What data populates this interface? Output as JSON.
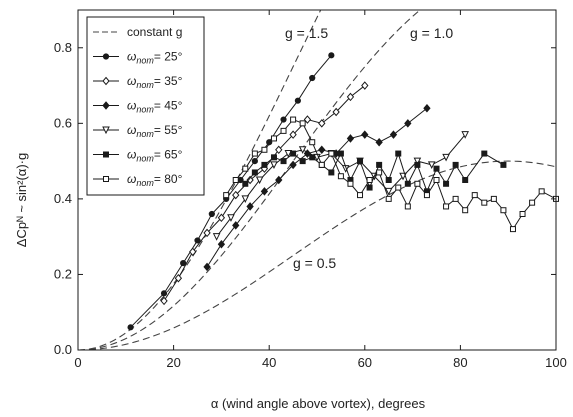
{
  "chart_data": {
    "type": "line",
    "xlabel": "α (wind angle above vortex), degrees",
    "ylabel": "ΔCpᴺ ~ sin²(α)·g",
    "xlim": [
      0,
      100
    ],
    "ylim": [
      0,
      0.9
    ],
    "xticks": [
      0,
      20,
      40,
      60,
      80,
      100
    ],
    "yticks": [
      0.0,
      0.2,
      0.4,
      0.6,
      0.8
    ],
    "xtick_labels": [
      "0",
      "20",
      "40",
      "60",
      "80",
      "100"
    ],
    "ytick_labels": [
      "0.0",
      "0.2",
      "0.4",
      "0.6",
      "0.8"
    ],
    "grid": false,
    "legend_position": "top-left",
    "reference_curves": [
      {
        "name": "constant g",
        "g": 1.5,
        "label": "g = 1.5"
      },
      {
        "name": "constant g",
        "g": 1.0,
        "label": "g = 1.0"
      },
      {
        "name": "constant g",
        "g": 0.5,
        "label": "g = 0.5"
      }
    ],
    "series": [
      {
        "name": "ω_nom = 25°",
        "marker": "filled-circle",
        "x": [
          11,
          18,
          22,
          25,
          28,
          31,
          34,
          37,
          40,
          43,
          46,
          49,
          53
        ],
        "y": [
          0.06,
          0.15,
          0.23,
          0.29,
          0.36,
          0.4,
          0.45,
          0.5,
          0.55,
          0.61,
          0.66,
          0.72,
          0.78
        ]
      },
      {
        "name": "ω_nom = 35°",
        "marker": "open-diamond",
        "x": [
          18,
          21,
          24,
          27,
          30,
          33,
          36,
          39,
          42,
          45,
          48,
          51,
          54,
          57,
          60
        ],
        "y": [
          0.13,
          0.19,
          0.26,
          0.31,
          0.35,
          0.41,
          0.45,
          0.48,
          0.53,
          0.57,
          0.61,
          0.6,
          0.63,
          0.67,
          0.7
        ]
      },
      {
        "name": "ω_nom = 45°",
        "marker": "filled-diamond",
        "x": [
          27,
          30,
          33,
          36,
          39,
          42,
          45,
          48,
          51,
          54,
          57,
          60,
          63,
          66,
          69,
          73
        ],
        "y": [
          0.22,
          0.28,
          0.33,
          0.38,
          0.42,
          0.45,
          0.49,
          0.52,
          0.53,
          0.52,
          0.56,
          0.57,
          0.55,
          0.57,
          0.6,
          0.64
        ]
      },
      {
        "name": "ω_nom = 55°",
        "marker": "open-triangle",
        "x": [
          29,
          32,
          35,
          38,
          41,
          44,
          47,
          50,
          53,
          56,
          59,
          62,
          65,
          68,
          71,
          74,
          77,
          81
        ],
        "y": [
          0.3,
          0.35,
          0.4,
          0.45,
          0.49,
          0.52,
          0.53,
          0.51,
          0.52,
          0.48,
          0.5,
          0.46,
          0.42,
          0.46,
          0.5,
          0.49,
          0.51,
          0.57
        ]
      },
      {
        "name": "ω_nom = 65°",
        "marker": "filled-square",
        "x": [
          35,
          37,
          39,
          41,
          43,
          45,
          47,
          49,
          51,
          53,
          55,
          57,
          59,
          61,
          63,
          65,
          67,
          69,
          71,
          73,
          75,
          77,
          79,
          81,
          85,
          89
        ],
        "y": [
          0.44,
          0.47,
          0.49,
          0.51,
          0.5,
          0.52,
          0.5,
          0.51,
          0.49,
          0.47,
          0.52,
          0.45,
          0.5,
          0.43,
          0.49,
          0.45,
          0.52,
          0.44,
          0.49,
          0.42,
          0.48,
          0.44,
          0.49,
          0.45,
          0.52,
          0.49
        ]
      },
      {
        "name": "ω_nom = 80°",
        "marker": "open-square",
        "x": [
          31,
          33,
          35,
          37,
          39,
          41,
          43,
          45,
          47,
          49,
          51,
          53,
          55,
          57,
          59,
          61,
          63,
          65,
          67,
          69,
          71,
          73,
          75,
          77,
          79,
          81,
          83,
          85,
          87,
          89,
          91,
          93,
          95,
          97,
          100
        ],
        "y": [
          0.41,
          0.45,
          0.48,
          0.52,
          0.53,
          0.56,
          0.58,
          0.61,
          0.6,
          0.55,
          0.49,
          0.52,
          0.46,
          0.44,
          0.41,
          0.45,
          0.47,
          0.4,
          0.43,
          0.38,
          0.44,
          0.41,
          0.45,
          0.38,
          0.4,
          0.37,
          0.41,
          0.39,
          0.4,
          0.37,
          0.32,
          0.36,
          0.39,
          0.42,
          0.4
        ]
      }
    ]
  },
  "legend": {
    "entries": [
      {
        "key": "constant",
        "prefix": "constant g",
        "sub": ""
      },
      {
        "key": "s25",
        "prefix": "ω",
        "sub": "nom",
        "suffix": "= 25°"
      },
      {
        "key": "s35",
        "prefix": "ω",
        "sub": "nom",
        "suffix": "= 35°"
      },
      {
        "key": "s45",
        "prefix": "ω",
        "sub": "nom",
        "suffix": "= 45°"
      },
      {
        "key": "s55",
        "prefix": "ω",
        "sub": "nom",
        "suffix": "= 55°"
      },
      {
        "key": "s65",
        "prefix": "ω",
        "sub": "nom",
        "suffix": "= 65°"
      },
      {
        "key": "s80",
        "prefix": "ω",
        "sub": "nom",
        "suffix": "= 80°"
      }
    ]
  },
  "colors": {
    "line": "#1a1a1a",
    "dash": "#444444",
    "background": "#ffffff"
  }
}
